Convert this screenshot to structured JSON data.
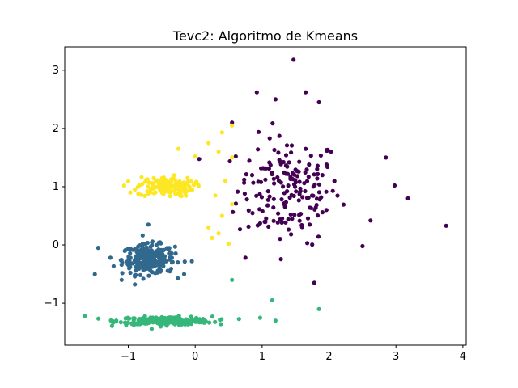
{
  "chart_data": {
    "type": "scatter",
    "title": "Tevc2: Algoritmo de Kmeans",
    "xlabel": "",
    "ylabel": "",
    "xlim": [
      -1.95,
      4.05
    ],
    "ylim": [
      -1.72,
      3.4
    ],
    "xticks": [
      -1,
      0,
      1,
      2,
      3,
      4
    ],
    "xtick_labels": [
      "−1",
      "0",
      "1",
      "2",
      "3",
      "4"
    ],
    "yticks": [
      -1,
      0,
      1,
      2,
      3
    ],
    "ytick_labels": [
      "−1",
      "0",
      "1",
      "2",
      "3"
    ],
    "grid": false,
    "colors": {
      "cluster_purple": "#440154",
      "cluster_blue": "#31688e",
      "cluster_green": "#35b779",
      "cluster_yellow": "#fde725"
    },
    "clusters": [
      {
        "color": "#440154",
        "center": [
          1.4,
          0.95
        ],
        "spread": [
          0.55,
          0.65
        ],
        "count": 180,
        "outliers": [
          [
            1.47,
            3.18
          ],
          [
            1.65,
            2.62
          ],
          [
            0.92,
            2.62
          ],
          [
            3.75,
            0.33
          ],
          [
            3.18,
            0.8
          ],
          [
            2.5,
            -0.02
          ],
          [
            0.55,
            2.1
          ],
          [
            0.75,
            -0.22
          ],
          [
            0.85,
            1.2
          ],
          [
            1.78,
            -0.65
          ],
          [
            2.98,
            1.02
          ],
          [
            2.85,
            1.5
          ],
          [
            2.62,
            0.42
          ],
          [
            1.85,
            2.45
          ],
          [
            1.2,
            2.5
          ]
        ]
      },
      {
        "color": "#31688e",
        "center": [
          -0.7,
          -0.25
        ],
        "spread": [
          0.28,
          0.18
        ],
        "count": 260,
        "outliers": [
          [
            -1.5,
            -0.5
          ],
          [
            -1.45,
            -0.05
          ],
          [
            -0.7,
            0.35
          ],
          [
            -1.1,
            -0.6
          ],
          [
            -0.05,
            -0.28
          ]
        ]
      },
      {
        "color": "#35b779",
        "center": [
          -0.45,
          -1.3
        ],
        "spread": [
          0.5,
          0.05
        ],
        "count": 230,
        "outliers": [
          [
            1.15,
            -0.95
          ],
          [
            1.85,
            -1.1
          ],
          [
            0.55,
            -0.6
          ],
          [
            1.2,
            -1.3
          ],
          [
            0.97,
            -1.25
          ],
          [
            -1.65,
            -1.22
          ]
        ]
      },
      {
        "color": "#fde725",
        "center": [
          -0.45,
          1.0
        ],
        "spread": [
          0.3,
          0.12
        ],
        "count": 150,
        "outliers": [
          [
            0.4,
            1.93
          ],
          [
            0.55,
            2.05
          ],
          [
            -0.25,
            1.65
          ],
          [
            0.0,
            1.52
          ],
          [
            0.2,
            1.75
          ],
          [
            0.35,
            1.6
          ],
          [
            0.55,
            1.5
          ],
          [
            0.3,
            0.85
          ],
          [
            0.4,
            0.5
          ],
          [
            0.35,
            0.2
          ],
          [
            0.5,
            0.02
          ],
          [
            0.2,
            0.3
          ],
          [
            0.45,
            1.1
          ],
          [
            0.55,
            0.7
          ],
          [
            0.25,
            0.12
          ]
        ]
      }
    ]
  }
}
